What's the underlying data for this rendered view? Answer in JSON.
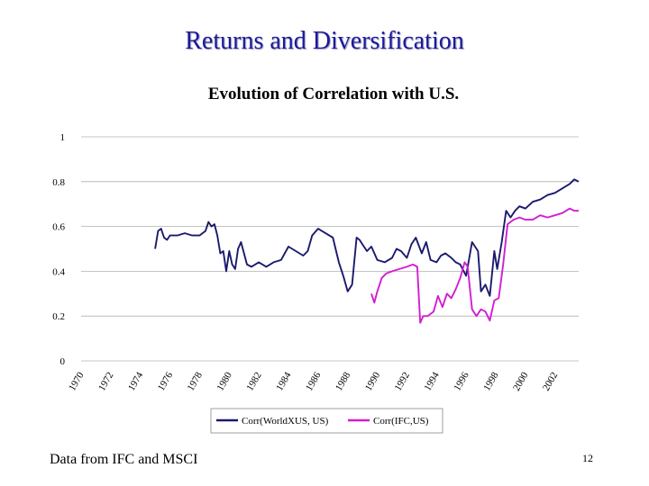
{
  "slide": {
    "title": "Returns and Diversification",
    "footer": "Data from IFC and MSCI",
    "page_number": "12"
  },
  "chart_data": {
    "type": "line",
    "title": "Evolution of Correlation with U.S.",
    "xlabel": "",
    "ylabel": "",
    "xlim": [
      1970,
      2003.6
    ],
    "ylim": [
      0,
      1
    ],
    "grid": "horizontal",
    "legend_placement": "bottom",
    "x_ticks": [
      "1970",
      "1972",
      "1974",
      "1976",
      "1978",
      "1980",
      "1982",
      "1984",
      "1986",
      "1988",
      "1990",
      "1992",
      "1994",
      "1996",
      "1998",
      "2000",
      "2002"
    ],
    "y_ticks": [
      "0",
      "0.2",
      "0.4",
      "0.6",
      "0.8",
      "1"
    ],
    "series": [
      {
        "name": "Corr(WorldXUS, US)",
        "color": "#1a1a6e",
        "x": [
          1975.0,
          1975.2,
          1975.4,
          1975.6,
          1975.8,
          1976.0,
          1976.5,
          1977.0,
          1977.5,
          1978.0,
          1978.4,
          1978.6,
          1978.8,
          1979.0,
          1979.2,
          1979.4,
          1979.6,
          1979.8,
          1980.0,
          1980.2,
          1980.4,
          1980.6,
          1980.8,
          1981.0,
          1981.2,
          1981.5,
          1982.0,
          1982.5,
          1983.0,
          1983.5,
          1984.0,
          1984.5,
          1985.0,
          1985.3,
          1985.6,
          1986.0,
          1986.5,
          1987.0,
          1987.4,
          1987.7,
          1988.0,
          1988.3,
          1988.6,
          1988.8,
          1989.0,
          1989.3,
          1989.6,
          1990.0,
          1990.5,
          1991.0,
          1991.3,
          1991.6,
          1992.0,
          1992.3,
          1992.6,
          1993.0,
          1993.3,
          1993.6,
          1994.0,
          1994.3,
          1994.6,
          1995.0,
          1995.3,
          1995.6,
          1996.0,
          1996.4,
          1996.8,
          1997.0,
          1997.3,
          1997.6,
          1997.9,
          1998.1,
          1998.4,
          1998.7,
          1999.0,
          1999.3,
          1999.6,
          2000.0,
          2000.5,
          2001.0,
          2001.5,
          2002.0,
          2002.5,
          2003.0,
          2003.3,
          2003.6
        ],
        "y": [
          0.5,
          0.58,
          0.59,
          0.55,
          0.54,
          0.56,
          0.56,
          0.57,
          0.56,
          0.56,
          0.58,
          0.62,
          0.6,
          0.61,
          0.56,
          0.48,
          0.49,
          0.4,
          0.49,
          0.43,
          0.41,
          0.5,
          0.53,
          0.48,
          0.43,
          0.42,
          0.44,
          0.42,
          0.44,
          0.45,
          0.51,
          0.49,
          0.47,
          0.49,
          0.56,
          0.59,
          0.57,
          0.55,
          0.44,
          0.38,
          0.31,
          0.34,
          0.55,
          0.54,
          0.52,
          0.49,
          0.51,
          0.45,
          0.44,
          0.46,
          0.5,
          0.49,
          0.46,
          0.52,
          0.55,
          0.48,
          0.53,
          0.45,
          0.44,
          0.47,
          0.48,
          0.46,
          0.44,
          0.43,
          0.38,
          0.53,
          0.49,
          0.31,
          0.34,
          0.29,
          0.49,
          0.41,
          0.53,
          0.67,
          0.64,
          0.67,
          0.69,
          0.68,
          0.71,
          0.72,
          0.74,
          0.75,
          0.77,
          0.79,
          0.81,
          0.8
        ]
      },
      {
        "name": "Corr(IFC,US)",
        "color": "#d21ed2",
        "x": [
          1989.6,
          1989.8,
          1990.0,
          1990.3,
          1990.6,
          1991.0,
          1991.5,
          1992.0,
          1992.4,
          1992.7,
          1992.9,
          1993.1,
          1993.4,
          1993.8,
          1994.1,
          1994.4,
          1994.7,
          1995.0,
          1995.3,
          1995.6,
          1995.9,
          1996.1,
          1996.4,
          1996.7,
          1997.0,
          1997.3,
          1997.6,
          1997.9,
          1998.2,
          1998.5,
          1998.8,
          1999.2,
          1999.6,
          2000.0,
          2000.5,
          2001.0,
          2001.5,
          2002.0,
          2002.5,
          2003.0,
          2003.3,
          2003.6
        ],
        "y": [
          0.3,
          0.26,
          0.31,
          0.37,
          0.39,
          0.4,
          0.41,
          0.42,
          0.43,
          0.42,
          0.17,
          0.2,
          0.2,
          0.22,
          0.29,
          0.24,
          0.3,
          0.28,
          0.32,
          0.37,
          0.44,
          0.42,
          0.23,
          0.2,
          0.23,
          0.22,
          0.18,
          0.27,
          0.28,
          0.43,
          0.61,
          0.63,
          0.64,
          0.63,
          0.63,
          0.65,
          0.64,
          0.65,
          0.66,
          0.68,
          0.67,
          0.67
        ]
      }
    ]
  }
}
